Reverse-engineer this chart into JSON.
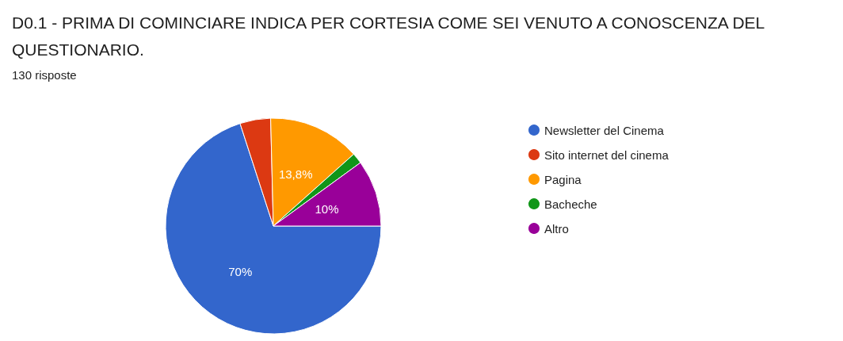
{
  "chart_data": {
    "type": "pie",
    "title": "D0.1 - PRIMA DI COMINCIARE INDICA PER CORTESIA COME SEI VENUTO A CONOSCENZA DEL QUESTIONARIO.",
    "subtitle": "130 risposte",
    "categories": [
      "Newsletter del Cinema",
      "Sito internet del cinema",
      "Pagina",
      "Bacheche",
      "Altro"
    ],
    "values": [
      70,
      4.6,
      13.8,
      1.6,
      10
    ],
    "colors": [
      "#3366cc",
      "#dc3912",
      "#ff9900",
      "#109618",
      "#990099"
    ],
    "value_labels": [
      "70%",
      null,
      "13,8%",
      null,
      "10%"
    ],
    "legend": "right"
  }
}
